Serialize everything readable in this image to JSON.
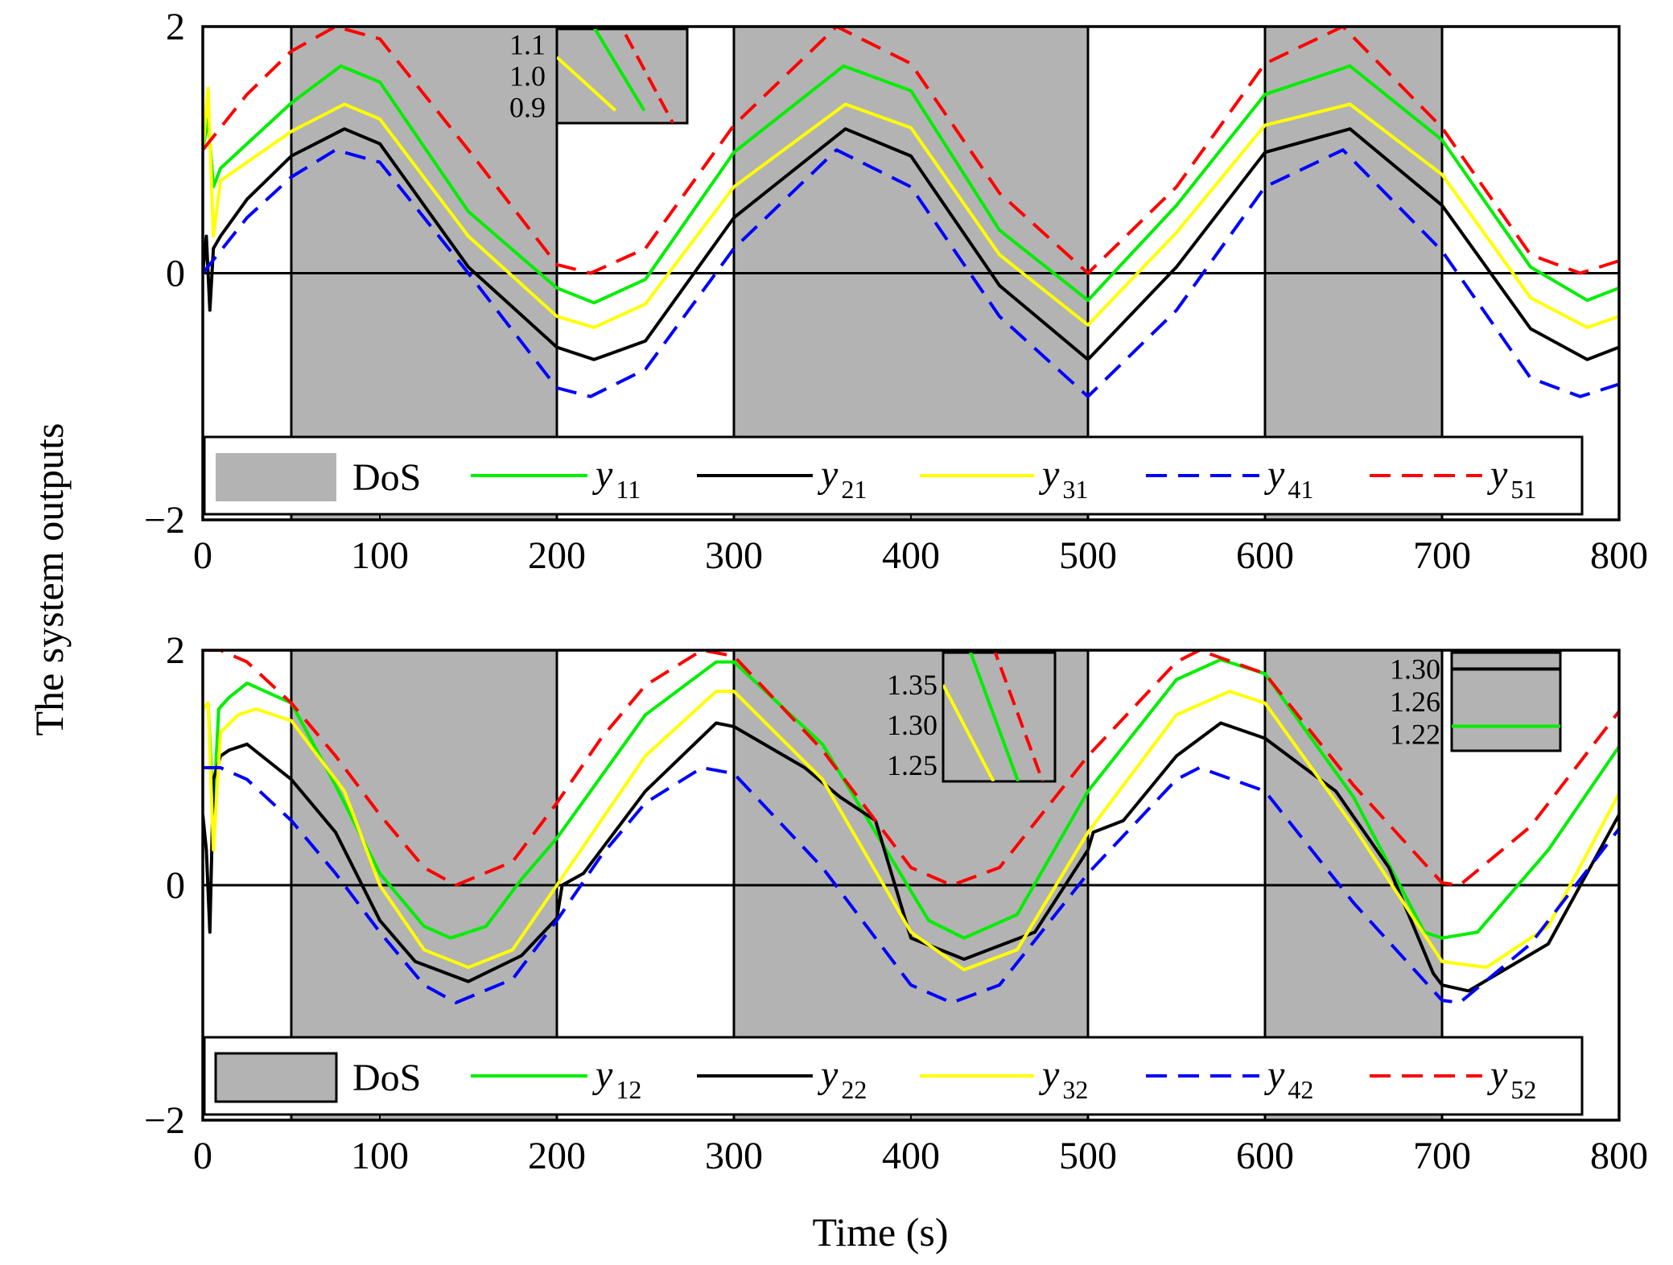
{
  "ylabel": "The system outputs",
  "xlabel": "Time (s)",
  "chart_data": [
    {
      "type": "line",
      "xlim": [
        0,
        800
      ],
      "ylim": [
        -2,
        2
      ],
      "xticks": [
        "0",
        "100",
        "200",
        "300",
        "400",
        "500",
        "600",
        "700",
        "800"
      ],
      "yticks": [
        "2",
        "0",
        "−2"
      ],
      "dos_intervals": [
        [
          50,
          200
        ],
        [
          300,
          500
        ],
        [
          600,
          700
        ]
      ],
      "legend": {
        "position": "bottom",
        "entries": [
          {
            "label": "DoS",
            "base": "",
            "sub": "",
            "kind": "patch",
            "color": "#b3b3b3"
          },
          {
            "label": "",
            "base": "y",
            "sub": "11",
            "kind": "solid",
            "color": "#00ee00"
          },
          {
            "label": "",
            "base": "y",
            "sub": "21",
            "kind": "solid",
            "color": "#000000"
          },
          {
            "label": "",
            "base": "y",
            "sub": "31",
            "kind": "solid",
            "color": "#ffff00"
          },
          {
            "label": "",
            "base": "y",
            "sub": "41",
            "kind": "dashed",
            "color": "#0000ff"
          },
          {
            "label": "",
            "base": "y",
            "sub": "51",
            "kind": "dashed",
            "color": "#ff0000"
          }
        ]
      },
      "series": [
        {
          "name": "y11",
          "color": "#00ee00",
          "dash": false,
          "x": [
            0,
            3,
            6,
            10,
            25,
            50,
            78,
            100,
            150,
            200,
            221,
            250,
            300,
            362,
            400,
            450,
            500,
            550,
            600,
            648,
            700,
            750,
            782,
            800
          ],
          "y": [
            1.0,
            1.25,
            0.7,
            0.85,
            1.05,
            1.38,
            1.68,
            1.55,
            0.5,
            -0.12,
            -0.24,
            -0.05,
            0.98,
            1.68,
            1.48,
            0.35,
            -0.22,
            0.55,
            1.45,
            1.68,
            1.08,
            0.05,
            -0.22,
            -0.12
          ]
        },
        {
          "name": "y21",
          "color": "#000000",
          "dash": false,
          "x": [
            0,
            2,
            4,
            6,
            10,
            25,
            50,
            80,
            100,
            150,
            200,
            221,
            250,
            300,
            363,
            400,
            450,
            500,
            550,
            600,
            648,
            700,
            750,
            782,
            800
          ],
          "y": [
            0.0,
            0.3,
            -0.3,
            0.2,
            0.3,
            0.6,
            0.95,
            1.17,
            1.05,
            0.05,
            -0.6,
            -0.7,
            -0.55,
            0.45,
            1.17,
            0.95,
            -0.1,
            -0.7,
            0.05,
            0.98,
            1.17,
            0.55,
            -0.45,
            -0.7,
            -0.6
          ]
        },
        {
          "name": "y31",
          "color": "#ffff00",
          "dash": false,
          "x": [
            0,
            3,
            6,
            10,
            25,
            50,
            80,
            100,
            150,
            200,
            221,
            250,
            300,
            363,
            400,
            450,
            500,
            550,
            600,
            648,
            700,
            750,
            782,
            800
          ],
          "y": [
            1.0,
            1.5,
            0.3,
            0.75,
            0.9,
            1.15,
            1.37,
            1.25,
            0.3,
            -0.35,
            -0.44,
            -0.25,
            0.7,
            1.37,
            1.18,
            0.15,
            -0.42,
            0.33,
            1.2,
            1.37,
            0.8,
            -0.2,
            -0.44,
            -0.35
          ]
        },
        {
          "name": "y41",
          "color": "#0000ff",
          "dash": true,
          "x": [
            0,
            25,
            50,
            75,
            100,
            150,
            200,
            219,
            250,
            300,
            358,
            400,
            450,
            500,
            550,
            600,
            644,
            700,
            750,
            778,
            800
          ],
          "y": [
            0.0,
            0.45,
            0.78,
            1.0,
            0.9,
            0.0,
            -0.93,
            -1.0,
            -0.78,
            0.2,
            1.0,
            0.7,
            -0.35,
            -1.0,
            -0.3,
            0.7,
            1.0,
            0.18,
            -0.85,
            -1.0,
            -0.9
          ]
        },
        {
          "name": "y51",
          "color": "#ff0000",
          "dash": true,
          "x": [
            0,
            25,
            50,
            75,
            100,
            150,
            200,
            219,
            250,
            300,
            358,
            400,
            450,
            500,
            550,
            600,
            644,
            700,
            750,
            778,
            800
          ],
          "y": [
            1.0,
            1.45,
            1.8,
            2.0,
            1.9,
            1.0,
            0.07,
            0.0,
            0.2,
            1.2,
            2.0,
            1.7,
            0.65,
            0.0,
            0.7,
            1.7,
            2.0,
            1.18,
            0.15,
            0.0,
            0.1
          ]
        }
      ],
      "inset": {
        "yticks": [
          "1.1",
          "1.0",
          "0.9"
        ],
        "ylim": [
          0.85,
          1.15
        ],
        "lines": [
          {
            "name": "y31",
            "color": "#ffff00",
            "y": [
              1.06,
              0.89
            ]
          },
          {
            "name": "y11",
            "color": "#00ee00",
            "y": [
              1.2,
              0.89
            ]
          },
          {
            "name": "y51",
            "color": "#ff0000",
            "dash": true,
            "y": [
              1.2,
              0.85
            ]
          }
        ]
      }
    },
    {
      "type": "line",
      "xlim": [
        0,
        800
      ],
      "ylim": [
        -2,
        2
      ],
      "xticks": [
        "0",
        "100",
        "200",
        "300",
        "400",
        "500",
        "600",
        "700",
        "800"
      ],
      "yticks": [
        "2",
        "0",
        "−2"
      ],
      "dos_intervals": [
        [
          50,
          200
        ],
        [
          300,
          500
        ],
        [
          600,
          700
        ]
      ],
      "legend": {
        "position": "bottom",
        "entries": [
          {
            "label": "DoS",
            "base": "",
            "sub": "",
            "kind": "patch",
            "color": "#b3b3b3"
          },
          {
            "label": "",
            "base": "y",
            "sub": "12",
            "kind": "solid",
            "color": "#00ee00"
          },
          {
            "label": "",
            "base": "y",
            "sub": "22",
            "kind": "solid",
            "color": "#000000"
          },
          {
            "label": "",
            "base": "y",
            "sub": "32",
            "kind": "solid",
            "color": "#ffff00"
          },
          {
            "label": "",
            "base": "y",
            "sub": "42",
            "kind": "dashed",
            "color": "#0000ff"
          },
          {
            "label": "",
            "base": "y",
            "sub": "52",
            "kind": "dashed",
            "color": "#ff0000"
          }
        ]
      },
      "series": [
        {
          "name": "y12",
          "color": "#00ee00",
          "dash": false,
          "x": [
            0,
            3,
            6,
            9,
            15,
            25,
            50,
            75,
            100,
            125,
            140,
            160,
            180,
            200,
            250,
            290,
            300,
            350,
            390,
            410,
            430,
            460,
            500,
            550,
            575,
            600,
            650,
            690,
            700,
            720,
            760,
            800
          ],
          "y": [
            1.5,
            1.55,
            0.6,
            1.5,
            1.6,
            1.72,
            1.55,
            0.85,
            0.1,
            -0.35,
            -0.45,
            -0.35,
            0.05,
            0.4,
            1.45,
            1.9,
            1.9,
            1.2,
            0.2,
            -0.3,
            -0.45,
            -0.25,
            0.8,
            1.75,
            1.92,
            1.8,
            0.75,
            -0.4,
            -0.45,
            -0.4,
            0.3,
            1.18
          ]
        },
        {
          "name": "y22",
          "color": "#000000",
          "dash": false,
          "x": [
            0,
            2,
            4,
            6,
            10,
            15,
            25,
            50,
            75,
            100,
            120,
            150,
            180,
            200,
            203,
            215,
            250,
            290,
            300,
            340,
            360,
            380,
            400,
            430,
            470,
            500,
            503,
            520,
            550,
            575,
            600,
            640,
            670,
            695,
            700,
            715,
            760,
            800
          ],
          "y": [
            0.6,
            0.3,
            -0.4,
            0.9,
            1.1,
            1.15,
            1.2,
            0.9,
            0.45,
            -0.3,
            -0.65,
            -0.82,
            -0.6,
            -0.28,
            0.0,
            0.1,
            0.8,
            1.38,
            1.35,
            1.0,
            0.75,
            0.55,
            -0.45,
            -0.63,
            -0.4,
            0.3,
            0.45,
            0.55,
            1.1,
            1.38,
            1.25,
            0.8,
            0.15,
            -0.75,
            -0.85,
            -0.9,
            -0.5,
            0.6
          ]
        },
        {
          "name": "y32",
          "color": "#ffff00",
          "dash": false,
          "x": [
            0,
            3,
            6,
            10,
            20,
            30,
            50,
            80,
            100,
            125,
            150,
            175,
            200,
            250,
            290,
            300,
            350,
            400,
            430,
            460,
            500,
            550,
            580,
            600,
            650,
            700,
            725,
            760,
            800
          ],
          "y": [
            1.5,
            1.55,
            0.3,
            1.3,
            1.45,
            1.5,
            1.4,
            0.8,
            0.0,
            -0.55,
            -0.7,
            -0.55,
            0.0,
            1.1,
            1.65,
            1.65,
            0.9,
            -0.4,
            -0.72,
            -0.55,
            0.45,
            1.45,
            1.65,
            1.55,
            0.5,
            -0.65,
            -0.7,
            -0.35,
            0.78
          ]
        },
        {
          "name": "y42",
          "color": "#0000ff",
          "dash": true,
          "x": [
            0,
            10,
            25,
            50,
            75,
            100,
            125,
            143,
            175,
            200,
            225,
            250,
            282,
            300,
            350,
            400,
            423,
            450,
            500,
            550,
            563,
            600,
            650,
            700,
            710,
            750,
            800
          ],
          "y": [
            1.0,
            1.0,
            0.9,
            0.55,
            0.1,
            -0.4,
            -0.85,
            -1.0,
            -0.8,
            -0.3,
            0.25,
            0.7,
            1.0,
            0.95,
            0.15,
            -0.85,
            -1.0,
            -0.85,
            0.1,
            0.9,
            1.0,
            0.8,
            -0.15,
            -0.98,
            -1.0,
            -0.5,
            0.48
          ]
        },
        {
          "name": "y52",
          "color": "#ff0000",
          "dash": true,
          "x": [
            0,
            10,
            25,
            50,
            75,
            100,
            125,
            143,
            175,
            200,
            225,
            250,
            282,
            300,
            350,
            400,
            423,
            450,
            500,
            550,
            563,
            600,
            650,
            700,
            710,
            750,
            800
          ],
          "y": [
            2.0,
            2.0,
            1.9,
            1.55,
            1.1,
            0.6,
            0.15,
            0.0,
            0.2,
            0.7,
            1.25,
            1.7,
            2.0,
            1.95,
            1.15,
            0.15,
            0.0,
            0.15,
            1.1,
            1.9,
            2.0,
            1.8,
            0.85,
            0.02,
            0.0,
            0.5,
            1.48
          ]
        }
      ],
      "insets": [
        {
          "yticks": [
            "1.35",
            "1.30",
            "1.25"
          ],
          "ylim": [
            1.23,
            1.39
          ],
          "lines": [
            {
              "name": "y32",
              "color": "#ffff00",
              "y": [
                1.35,
                1.23
              ]
            },
            {
              "name": "y12",
              "color": "#00ee00",
              "y": [
                1.4,
                1.23
              ]
            },
            {
              "name": "y52",
              "color": "#ff0000",
              "dash": true,
              "y": [
                1.4,
                1.23
              ]
            }
          ]
        },
        {
          "yticks": [
            "1.30",
            "1.26",
            "1.22"
          ],
          "ylim": [
            1.2,
            1.32
          ],
          "lines": [
            {
              "name": "y22",
              "color": "#000000",
              "y": [
                1.3,
                1.3
              ]
            },
            {
              "name": "y12",
              "color": "#00ee00",
              "y": [
                1.23,
                1.23
              ]
            }
          ]
        }
      ]
    }
  ]
}
